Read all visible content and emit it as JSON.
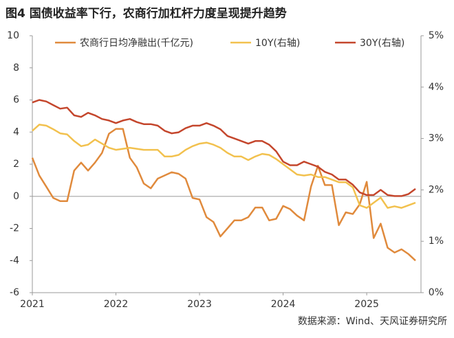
{
  "chart_data": {
    "type": "line",
    "title": "图4  国债收益率下行，农商行加杠杆力度呈现提升趋势",
    "source": "数据来源：Wind、天风证券研究所",
    "categories": [
      "2021",
      null,
      null,
      null,
      null,
      null,
      null,
      null,
      null,
      null,
      null,
      null,
      "2022",
      null,
      null,
      null,
      null,
      null,
      null,
      null,
      null,
      null,
      null,
      null,
      "2023",
      null,
      null,
      null,
      null,
      null,
      null,
      null,
      null,
      null,
      null,
      null,
      "2024",
      null,
      null,
      null,
      null,
      null,
      null,
      null,
      null,
      null,
      null,
      null,
      "2025",
      null,
      null,
      null,
      null,
      null,
      null,
      null
    ],
    "ylim": [
      -6,
      10
    ],
    "yticks": [
      -6,
      -4,
      -2,
      0,
      2,
      4,
      6,
      8,
      10
    ],
    "y2lim": [
      0,
      5
    ],
    "y2ticks": [
      {
        "value": 0,
        "label": "0%"
      },
      {
        "value": 1,
        "label": "1%"
      },
      {
        "value": 2,
        "label": "2%"
      },
      {
        "value": 3,
        "label": "3%"
      },
      {
        "value": 4,
        "label": "4%"
      },
      {
        "value": 5,
        "label": "5%"
      }
    ],
    "legend": "top",
    "series": [
      {
        "name": "农商行日均净融出(千亿元)",
        "color": "#E08A3C",
        "values": [
          2.4,
          1.3,
          0.6,
          -0.1,
          -0.3,
          -0.3,
          1.6,
          2.1,
          1.6,
          2.1,
          2.7,
          3.9,
          4.2,
          4.2,
          2.4,
          1.8,
          0.8,
          0.5,
          1.1,
          1.3,
          1.5,
          1.4,
          1.1,
          -0.1,
          -0.2,
          -1.3,
          -1.6,
          -2.5,
          -2.0,
          -1.5,
          -1.5,
          -1.3,
          -0.7,
          -0.7,
          -1.5,
          -1.4,
          -0.6,
          -0.8,
          -1.2,
          -1.5,
          0.6,
          1.9,
          0.7,
          0.7,
          -1.8,
          -1.0,
          -1.1,
          -0.5,
          0.9,
          -2.6,
          -1.7,
          -3.2,
          -3.5,
          -3.3,
          -3.6,
          -4.0
        ]
      },
      {
        "name": "10Y(右轴)",
        "color": "#F2C14E",
        "axis": "y2",
        "values": [
          3.15,
          3.27,
          3.25,
          3.18,
          3.1,
          3.08,
          2.95,
          2.85,
          2.88,
          2.98,
          2.9,
          2.82,
          2.78,
          2.8,
          2.82,
          2.8,
          2.78,
          2.78,
          2.78,
          2.65,
          2.65,
          2.68,
          2.78,
          2.85,
          2.9,
          2.92,
          2.88,
          2.82,
          2.72,
          2.65,
          2.65,
          2.58,
          2.65,
          2.7,
          2.68,
          2.6,
          2.5,
          2.4,
          2.3,
          2.28,
          2.3,
          2.25,
          2.25,
          2.2,
          2.15,
          2.15,
          2.05,
          1.7,
          1.65,
          1.75,
          1.85,
          1.65,
          1.68,
          1.65,
          1.7,
          1.75
        ]
      },
      {
        "name": "30Y(右轴)",
        "color": "#C4462C",
        "axis": "y2",
        "values": [
          3.7,
          3.75,
          3.72,
          3.65,
          3.58,
          3.6,
          3.45,
          3.42,
          3.5,
          3.45,
          3.38,
          3.35,
          3.3,
          3.35,
          3.38,
          3.32,
          3.28,
          3.28,
          3.25,
          3.15,
          3.1,
          3.12,
          3.2,
          3.25,
          3.25,
          3.3,
          3.25,
          3.18,
          3.05,
          3.0,
          2.95,
          2.9,
          2.95,
          2.95,
          2.88,
          2.75,
          2.55,
          2.48,
          2.48,
          2.55,
          2.5,
          2.45,
          2.35,
          2.3,
          2.2,
          2.2,
          2.1,
          1.95,
          1.9,
          1.9,
          2.0,
          1.9,
          1.88,
          1.88,
          1.92,
          2.02
        ]
      }
    ]
  }
}
